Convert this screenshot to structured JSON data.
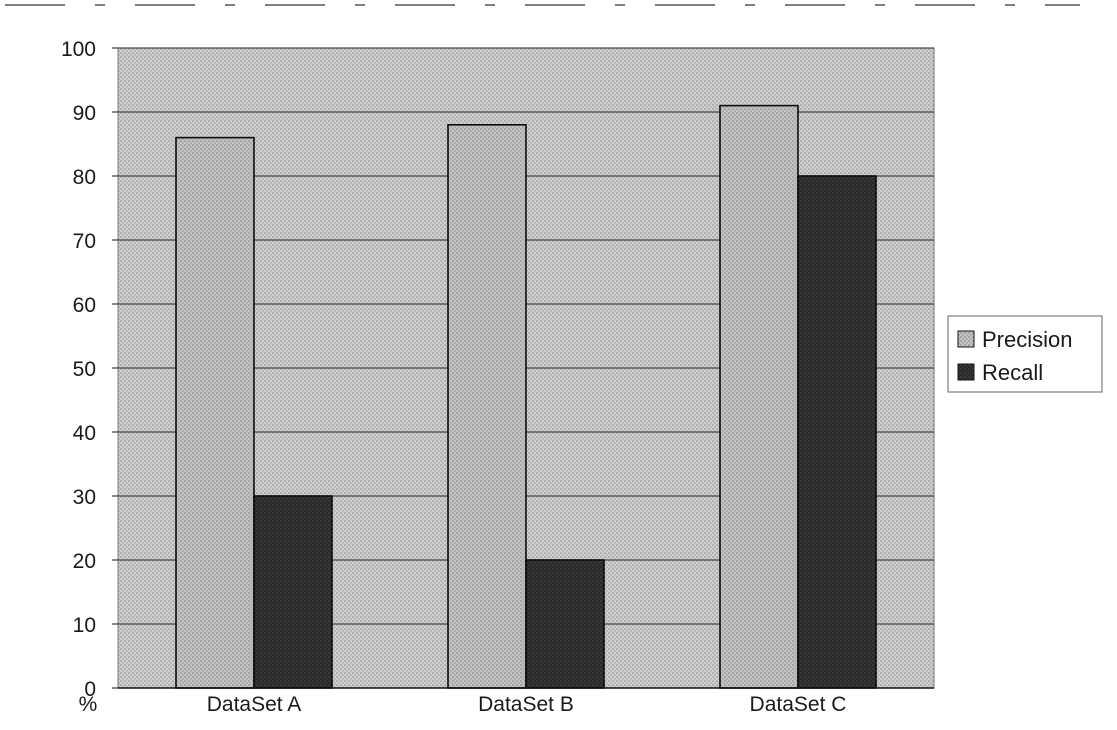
{
  "chart_data": {
    "type": "bar",
    "categories": [
      "DataSet A",
      "DataSet B",
      "DataSet C"
    ],
    "series": [
      {
        "name": "Precision",
        "values": [
          86,
          88,
          91
        ]
      },
      {
        "name": "Recall",
        "values": [
          30,
          20,
          80
        ]
      }
    ],
    "title": "",
    "xlabel": "",
    "ylabel": "%",
    "ylim": [
      0,
      100
    ],
    "yticks": [
      "0",
      "10",
      "20",
      "30",
      "40",
      "50",
      "60",
      "70",
      "80",
      "90",
      "100"
    ],
    "grid": true,
    "legend": "right",
    "colors": {
      "plot_background": "#c9c9c9",
      "precision": "#bdbdbd",
      "recall": "#262626",
      "gridline": "#4a4a4a"
    }
  }
}
